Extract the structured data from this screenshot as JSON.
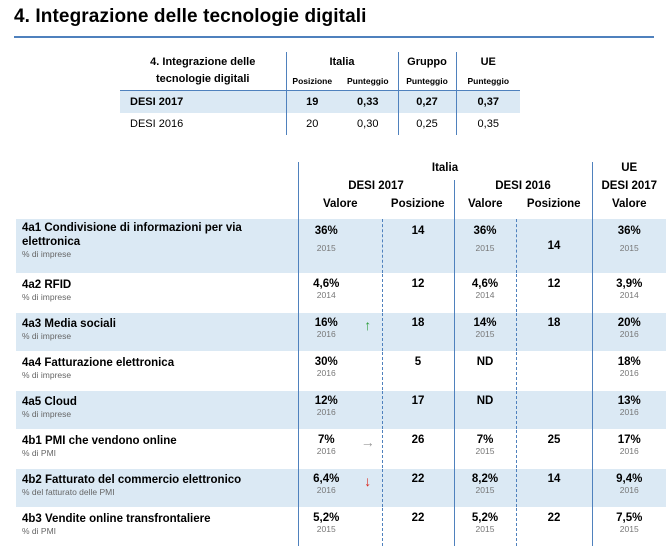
{
  "title": "4. Integrazione delle tecnologie digitali",
  "summary": {
    "head_title": [
      "4. Integrazione delle",
      "tecnologie digitali"
    ],
    "col_italia": "Italia",
    "col_gruppo": "Gruppo",
    "col_ue": "UE",
    "sub_posizione": "Posizione",
    "sub_punteggio": "Punteggio",
    "rows": [
      {
        "label": "DESI 2017",
        "posizione": "19",
        "punteggio": "0,33",
        "gruppo": "0,27",
        "ue": "0,37"
      },
      {
        "label": "DESI 2016",
        "posizione": "20",
        "punteggio": "0,30",
        "gruppo": "0,25",
        "ue": "0,35"
      }
    ]
  },
  "main": {
    "head_italia": "Italia",
    "head_ue": "UE",
    "head_desi2017": "DESI 2017",
    "head_desi2016": "DESI 2016",
    "head_ue_desi2017": "DESI 2017",
    "col_valore": "Valore",
    "col_posizione": "Posizione",
    "rows": [
      {
        "name": "4a1 Condivisione di informazioni per via elettronica",
        "name2": "",
        "unit": "% di imprese",
        "v17": "36%",
        "arrow": "",
        "arrow_color": "",
        "y17": "2015",
        "pos17": "14",
        "v16": "36%",
        "y16": "2015",
        "pos16": "14",
        "ue": "36%",
        "yue": "2015"
      },
      {
        "name": "4a2 RFID",
        "unit": "% di imprese",
        "v17": "4,6%",
        "arrow": "",
        "arrow_color": "",
        "y17": "2014",
        "pos17": "12",
        "v16": "4,6%",
        "y16": "2014",
        "pos16": "12",
        "ue": "3,9%",
        "yue": "2014"
      },
      {
        "name": "4a3 Media sociali",
        "unit": "% di imprese",
        "v17": "16%",
        "arrow": "↑",
        "arrow_color": "#2e9e3e",
        "y17": "2016",
        "pos17": "18",
        "v16": "14%",
        "y16": "2015",
        "pos16": "18",
        "ue": "20%",
        "yue": "2016"
      },
      {
        "name": "4a4 Fatturazione elettronica",
        "unit": "% di imprese",
        "v17": "30%",
        "arrow": "",
        "arrow_color": "",
        "y17": "2016",
        "pos17": "5",
        "v16": "ND",
        "y16": "",
        "pos16": "",
        "ue": "18%",
        "yue": "2016"
      },
      {
        "name": "4a5 Cloud",
        "unit": "% di imprese",
        "v17": "12%",
        "arrow": "",
        "arrow_color": "",
        "y17": "2016",
        "pos17": "17",
        "v16": "ND",
        "y16": "",
        "pos16": "",
        "ue": "13%",
        "yue": "2016"
      },
      {
        "name": "4b1 PMI che vendono online",
        "unit": "% di PMI",
        "v17": "7%",
        "arrow": "→",
        "arrow_color": "#999999",
        "y17": "2016",
        "pos17": "26",
        "v16": "7%",
        "y16": "2015",
        "pos16": "25",
        "ue": "17%",
        "yue": "2016"
      },
      {
        "name": "4b2 Fatturato del commercio elettronico",
        "unit": "% del fatturato delle PMI",
        "v17": "6,4%",
        "arrow": "↓",
        "arrow_color": "#d9261c",
        "y17": "2016",
        "pos17": "22",
        "v16": "8,2%",
        "y16": "2015",
        "pos16": "14",
        "ue": "9,4%",
        "yue": "2016"
      },
      {
        "name": "4b3 Vendite online transfrontaliere",
        "unit": "% di PMI",
        "v17": "5,2%",
        "arrow": "",
        "arrow_color": "",
        "y17": "2015",
        "pos17": "22",
        "v16": "5,2%",
        "y16": "2015",
        "pos16": "22",
        "ue": "7,5%",
        "yue": "2015"
      }
    ]
  }
}
